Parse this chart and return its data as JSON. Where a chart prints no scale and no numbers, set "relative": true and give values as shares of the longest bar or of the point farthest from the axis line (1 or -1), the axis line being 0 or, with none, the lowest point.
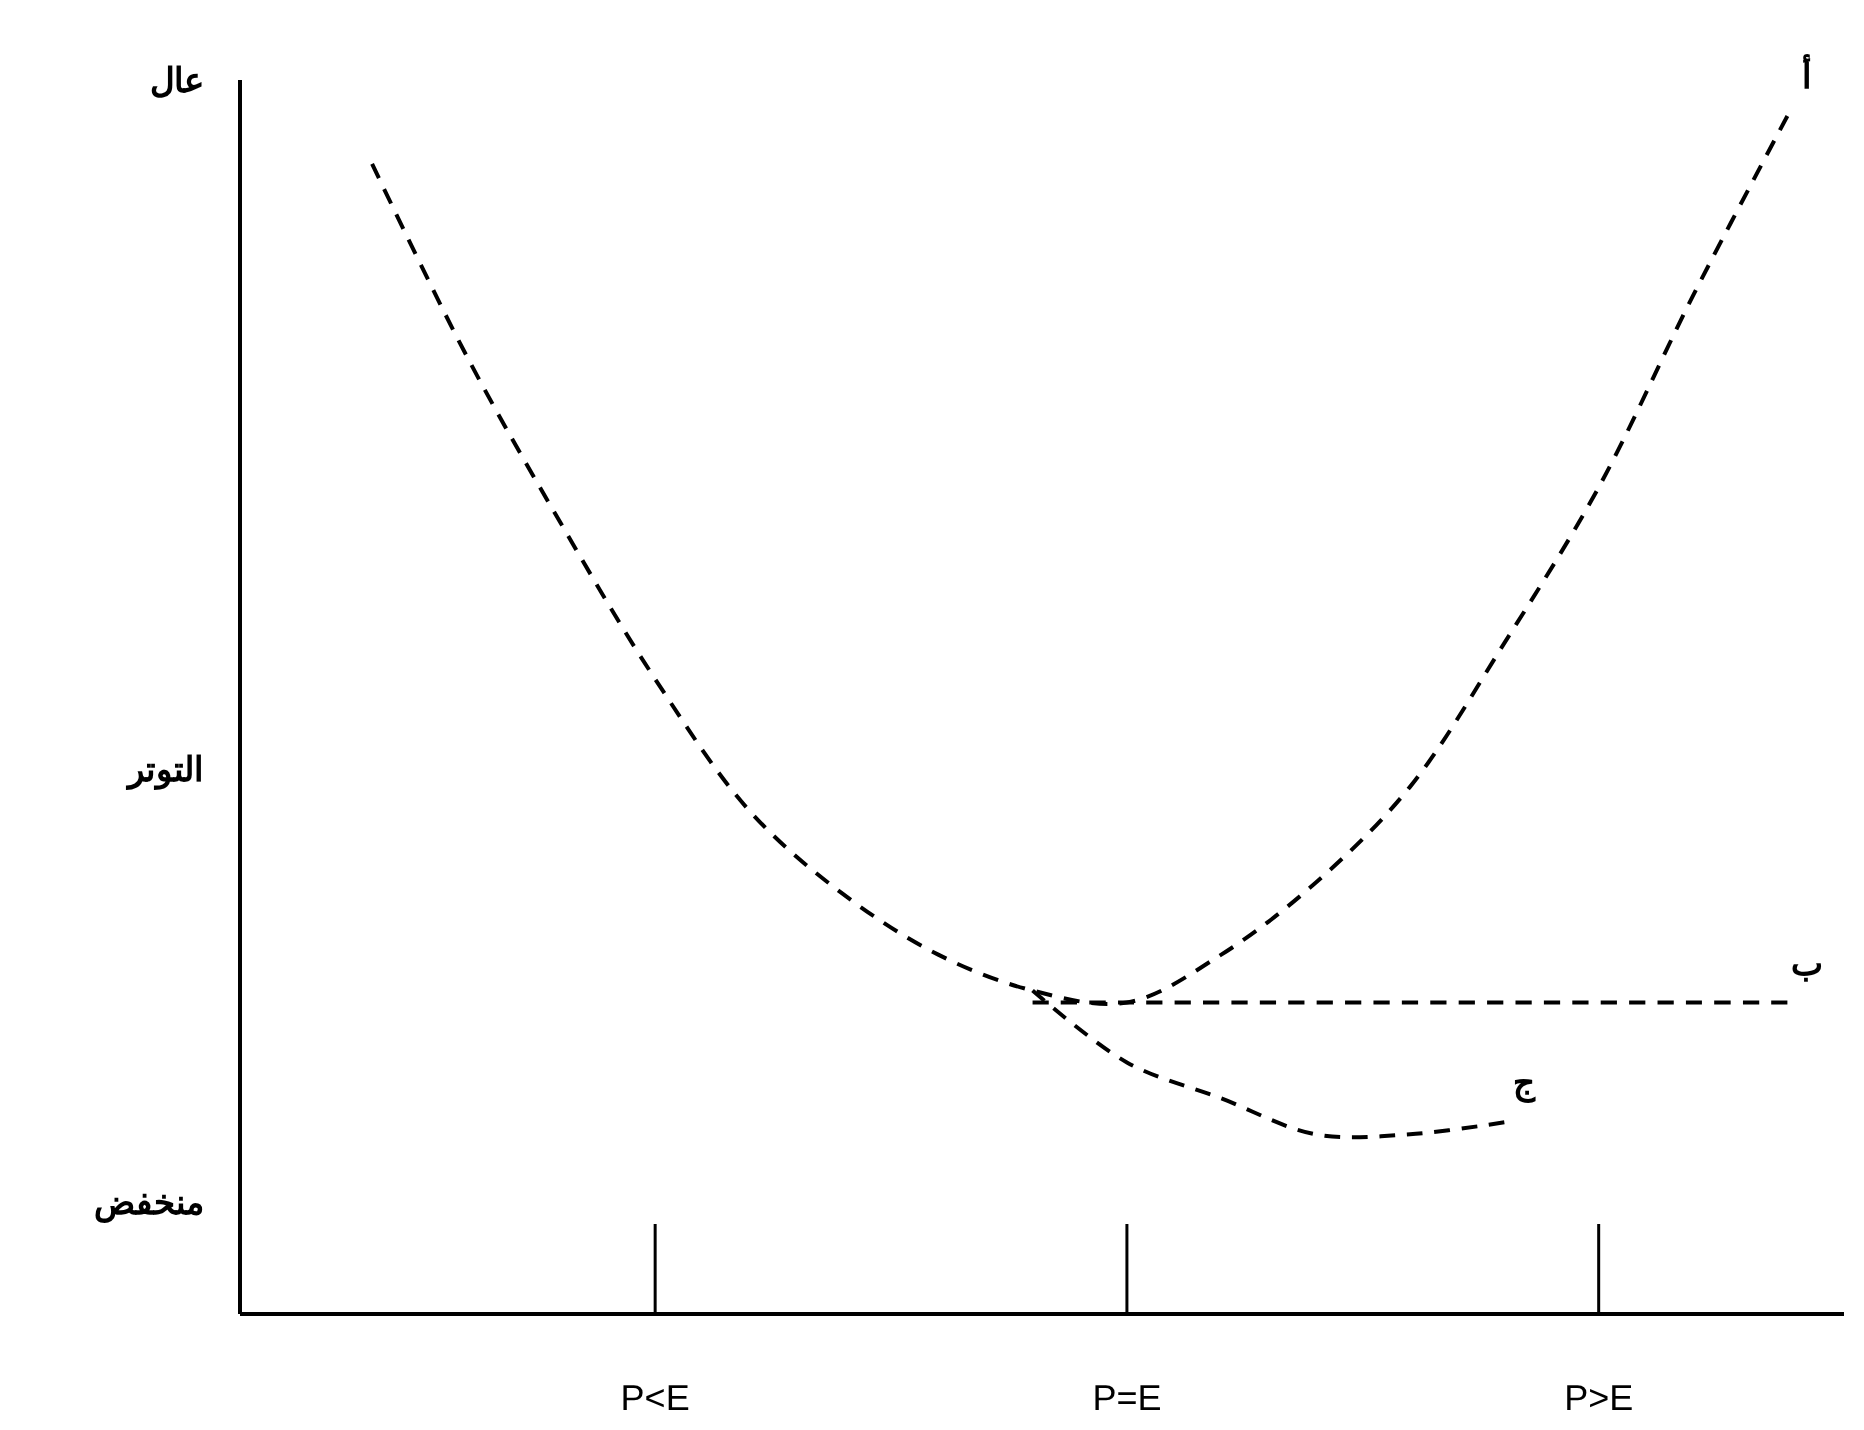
{
  "chart_data": {
    "type": "line",
    "ylabel": "التوتر",
    "line_style": "dashed",
    "relative": true,
    "annotations": [
      "عال",
      "منخفض"
    ],
    "categories": [
      null,
      null,
      null,
      null,
      "P<E",
      null,
      null,
      null,
      null,
      "P=E",
      null,
      null,
      null,
      null,
      "P>E",
      null,
      null
    ],
    "series": [
      {
        "name": "أ",
        "color": "#000000",
        "values": [
          null,
          0.96,
          0.8,
          0.66,
          0.53,
          0.42,
          0.35,
          0.3,
          0.27,
          0.26,
          0.3,
          0.36,
          0.44,
          0.56,
          0.69,
          0.85,
          1
        ]
      },
      {
        "name": "ب",
        "color": "#000000",
        "values": [
          null,
          null,
          null,
          null,
          null,
          null,
          null,
          null,
          0.26,
          0.26,
          0.26,
          0.26,
          0.26,
          0.26,
          0.26,
          0.26,
          0.26
        ]
      },
      {
        "name": "ج",
        "color": "#000000",
        "values": [
          null,
          null,
          null,
          null,
          null,
          null,
          null,
          null,
          0.27,
          0.21,
          0.18,
          0.15,
          0.15,
          0.16,
          null,
          null,
          null
        ]
      }
    ]
  }
}
